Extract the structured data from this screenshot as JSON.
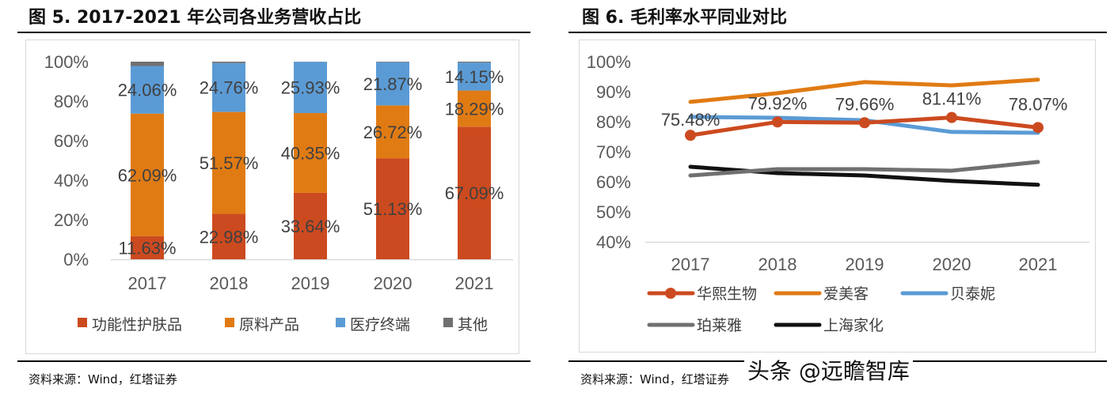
{
  "left": {
    "title": "图 5. 2017-2021 年公司各业务营收占比",
    "source": "资料来源：Wind，红塔证券"
  },
  "right": {
    "title": "图 6. 毛利率水平同业对比",
    "source": "资料来源：Wind，红塔证券"
  },
  "watermark": "头条 @远瞻智库",
  "chart_data": [
    {
      "type": "bar",
      "stacked": true,
      "categories": [
        "2017",
        "2018",
        "2019",
        "2020",
        "2021"
      ],
      "ylim": [
        0,
        100
      ],
      "yticks": [
        "0%",
        "20%",
        "40%",
        "60%",
        "80%",
        "100%"
      ],
      "legend_position": "bottom",
      "grid": false,
      "series": [
        {
          "name": "功能性护肤品",
          "color": "#cc4a1f",
          "values": [
            11.63,
            22.98,
            33.64,
            51.13,
            67.09
          ],
          "labels": [
            "11.63%",
            "22.98%",
            "33.64%",
            "51.13%",
            "67.09%"
          ]
        },
        {
          "name": "原料产品",
          "color": "#e07b14",
          "values": [
            62.09,
            51.57,
            40.35,
            26.72,
            18.29
          ],
          "labels": [
            "62.09%",
            "51.57%",
            "40.35%",
            "26.72%",
            "18.29%"
          ]
        },
        {
          "name": "医疗终端",
          "color": "#5b9bd5",
          "values": [
            24.06,
            24.76,
            25.93,
            21.87,
            14.15
          ],
          "labels": [
            "24.06%",
            "24.76%",
            "25.93%",
            "21.87%",
            "14.15%"
          ]
        },
        {
          "name": "其他",
          "color": "#707070",
          "values": [
            2.22,
            0.69,
            0.08,
            0.28,
            0.47
          ]
        }
      ]
    },
    {
      "type": "line",
      "categories": [
        "2017",
        "2018",
        "2019",
        "2020",
        "2021"
      ],
      "ylim": [
        40,
        100
      ],
      "yticks": [
        "40%",
        "50%",
        "60%",
        "70%",
        "80%",
        "90%",
        "100%"
      ],
      "legend_position": "bottom",
      "grid": false,
      "series": [
        {
          "name": "华熙生物",
          "color": "#cc4a1f",
          "marker": "circle",
          "values": [
            75.48,
            79.92,
            79.66,
            81.41,
            78.07
          ],
          "labels": [
            "75.48%",
            "79.92%",
            "79.66%",
            "81.41%",
            "78.07%"
          ]
        },
        {
          "name": "爱美客",
          "color": "#e07b14",
          "values": [
            86.6,
            89.5,
            93.2,
            92.1,
            94.0
          ]
        },
        {
          "name": "贝泰妮",
          "color": "#5b9bd5",
          "values": [
            81.6,
            81.3,
            80.5,
            76.6,
            76.3
          ]
        },
        {
          "name": "珀莱雅",
          "color": "#707070",
          "values": [
            62.1,
            64.2,
            64.2,
            63.7,
            66.6
          ]
        },
        {
          "name": "上海家化",
          "color": "#111111",
          "values": [
            65.0,
            62.9,
            62.1,
            60.3,
            59.0
          ]
        }
      ]
    }
  ]
}
